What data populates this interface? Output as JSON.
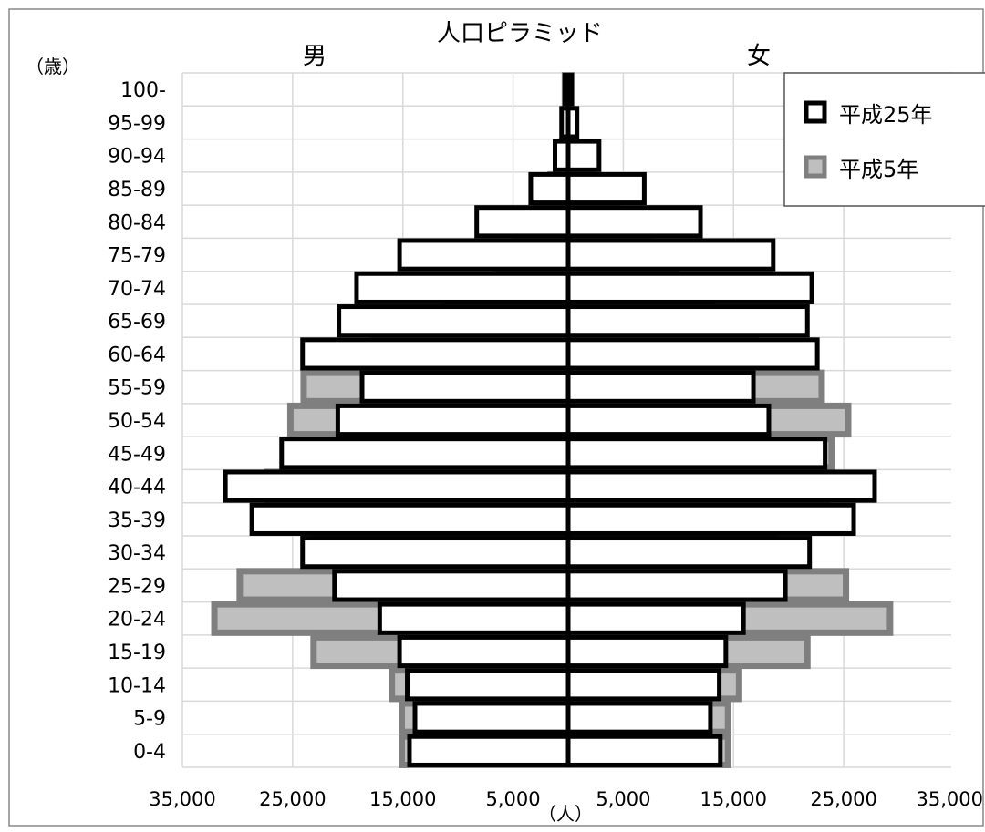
{
  "chart_data": {
    "type": "bar",
    "title": "人口ピラミッド",
    "left_label": "男",
    "right_label": "女",
    "y_unit_label": "（歳）",
    "x_unit_label": "（人）",
    "categories": [
      "100-",
      "95-99",
      "90-94",
      "85-89",
      "80-84",
      "75-79",
      "70-74",
      "65-69",
      "60-64",
      "55-59",
      "50-54",
      "45-49",
      "40-44",
      "35-39",
      "30-34",
      "25-29",
      "20-24",
      "15-19",
      "10-14",
      "5-9",
      "0-4"
    ],
    "x_tick_labels": [
      "35,000",
      "25,000",
      "15,000",
      "5,000",
      "5,000",
      "15,000",
      "25,000",
      "35,000"
    ],
    "x_tick_values": [
      -35000,
      -25000,
      -15000,
      -5000,
      5000,
      15000,
      25000,
      35000
    ],
    "xlim": [
      -35000,
      35000
    ],
    "grid": true,
    "legend_position": "top-right",
    "series": [
      {
        "name": "平成5年",
        "color": "#bfbfbf",
        "edge_color": "#7f7f7f",
        "male": [
          300,
          300,
          600,
          1600,
          3000,
          4700,
          6600,
          11300,
          17700,
          24000,
          25200,
          25200,
          27300,
          20600,
          23000,
          29800,
          32100,
          23100,
          16000,
          15100,
          15100
        ],
        "female": [
          300,
          300,
          500,
          2200,
          4500,
          7300,
          9800,
          13000,
          17000,
          23000,
          25400,
          23900,
          23500,
          17000,
          18800,
          25200,
          29200,
          21700,
          15500,
          14500,
          14500
        ]
      },
      {
        "name": "平成25年",
        "color": "#ffffff",
        "edge_color": "#000000",
        "male": [
          300,
          600,
          1200,
          3400,
          8300,
          15300,
          19200,
          20800,
          24100,
          18700,
          20900,
          26000,
          31100,
          28700,
          24100,
          21200,
          17100,
          15300,
          14600,
          13900,
          14400
        ],
        "female": [
          300,
          800,
          2800,
          6900,
          12000,
          18600,
          22100,
          21700,
          22600,
          16800,
          18200,
          23300,
          27800,
          25900,
          21900,
          19700,
          15900,
          14300,
          13700,
          12900,
          13800
        ]
      }
    ]
  }
}
